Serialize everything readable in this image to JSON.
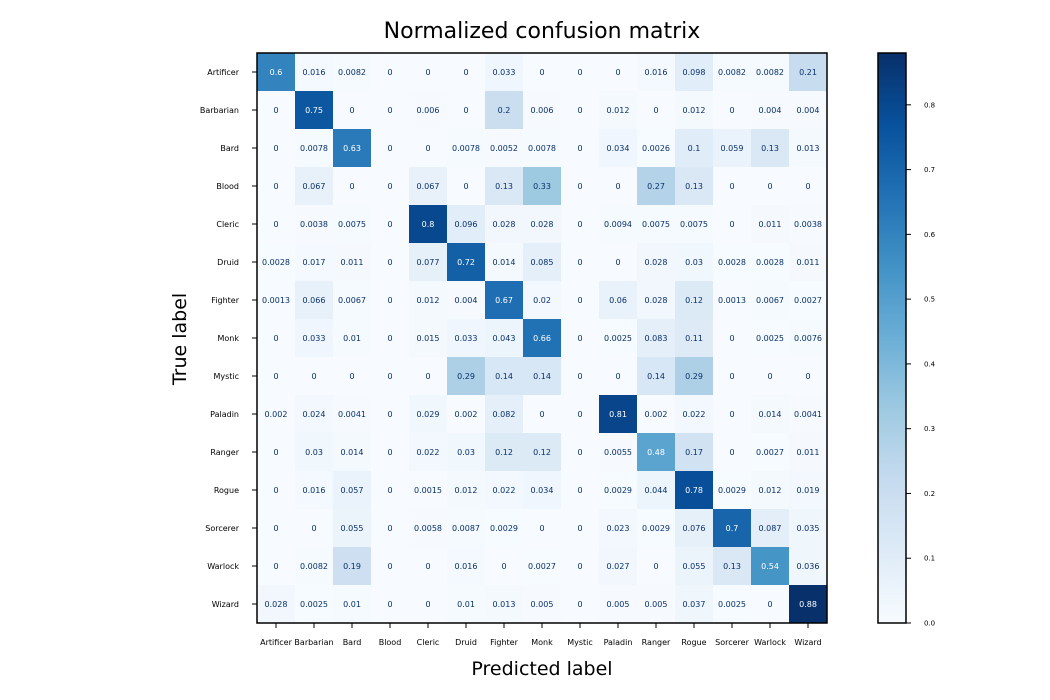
{
  "chart_data": {
    "type": "heatmap",
    "title": "Normalized confusion matrix",
    "xlabel": "Predicted label",
    "ylabel": "True label",
    "classes": [
      "Artificer",
      "Barbarian",
      "Bard",
      "Blood",
      "Cleric",
      "Druid",
      "Fighter",
      "Monk",
      "Mystic",
      "Paladin",
      "Ranger",
      "Rogue",
      "Sorcerer",
      "Warlock",
      "Wizard"
    ],
    "values": [
      [
        0.6,
        0.016,
        0.0082,
        0,
        0,
        0,
        0.033,
        0,
        0,
        0,
        0.016,
        0.098,
        0.0082,
        0.0082,
        0.21
      ],
      [
        0,
        0.75,
        0,
        0,
        0.006,
        0,
        0.2,
        0.006,
        0,
        0.012,
        0,
        0.012,
        0,
        0.004,
        0.004
      ],
      [
        0,
        0.0078,
        0.63,
        0,
        0,
        0.0078,
        0.0052,
        0.0078,
        0,
        0.034,
        0.0026,
        0.1,
        0.059,
        0.13,
        0.013
      ],
      [
        0,
        0.067,
        0,
        0,
        0.067,
        0,
        0.13,
        0.33,
        0,
        0,
        0.27,
        0.13,
        0,
        0,
        0
      ],
      [
        0,
        0.0038,
        0.0075,
        0,
        0.8,
        0.096,
        0.028,
        0.028,
        0,
        0.0094,
        0.0075,
        0.0075,
        0,
        0.011,
        0.0038
      ],
      [
        0.0028,
        0.017,
        0.011,
        0,
        0.077,
        0.72,
        0.014,
        0.085,
        0,
        0,
        0.028,
        0.03,
        0.0028,
        0.0028,
        0.011
      ],
      [
        0.0013,
        0.066,
        0.0067,
        0,
        0.012,
        0.004,
        0.67,
        0.02,
        0,
        0.06,
        0.028,
        0.12,
        0.0013,
        0.0067,
        0.0027
      ],
      [
        0,
        0.033,
        0.01,
        0,
        0.015,
        0.033,
        0.043,
        0.66,
        0,
        0.0025,
        0.083,
        0.11,
        0,
        0.0025,
        0.0076
      ],
      [
        0,
        0,
        0,
        0,
        0,
        0.29,
        0.14,
        0.14,
        0,
        0,
        0.14,
        0.29,
        0,
        0,
        0
      ],
      [
        0.002,
        0.024,
        0.0041,
        0,
        0.029,
        0.002,
        0.082,
        0,
        0,
        0.81,
        0.002,
        0.022,
        0,
        0.014,
        0.0041
      ],
      [
        0,
        0.03,
        0.014,
        0,
        0.022,
        0.03,
        0.12,
        0.12,
        0,
        0.0055,
        0.48,
        0.17,
        0,
        0.0027,
        0.011
      ],
      [
        0,
        0.016,
        0.057,
        0,
        0.0015,
        0.012,
        0.022,
        0.034,
        0,
        0.0029,
        0.044,
        0.78,
        0.0029,
        0.012,
        0.019
      ],
      [
        0,
        0,
        0.055,
        0,
        0.0058,
        0.0087,
        0.0029,
        0,
        0,
        0.023,
        0.0029,
        0.076,
        0.7,
        0.087,
        0.035
      ],
      [
        0,
        0.0082,
        0.19,
        0,
        0,
        0.016,
        0,
        0.0027,
        0,
        0.027,
        0,
        0.055,
        0.13,
        0.54,
        0.036
      ],
      [
        0.028,
        0.0025,
        0.01,
        0,
        0,
        0.01,
        0.013,
        0.005,
        0,
        0.005,
        0.005,
        0.037,
        0.0025,
        0,
        0.88
      ]
    ],
    "colormap": "Blues",
    "vmin": 0,
    "vmax": 0.88,
    "colorbar_ticks": [
      "0.0",
      "0.1",
      "0.2",
      "0.3",
      "0.4",
      "0.5",
      "0.6",
      "0.7",
      "0.8"
    ],
    "light_text_color": "#ffffff",
    "dark_text_color": "#08306b",
    "colormap_stops": [
      "#f7fbff",
      "#deebf7",
      "#c6dbef",
      "#9ecae1",
      "#6baed6",
      "#4292c6",
      "#2171b5",
      "#08519c",
      "#08306b"
    ]
  }
}
